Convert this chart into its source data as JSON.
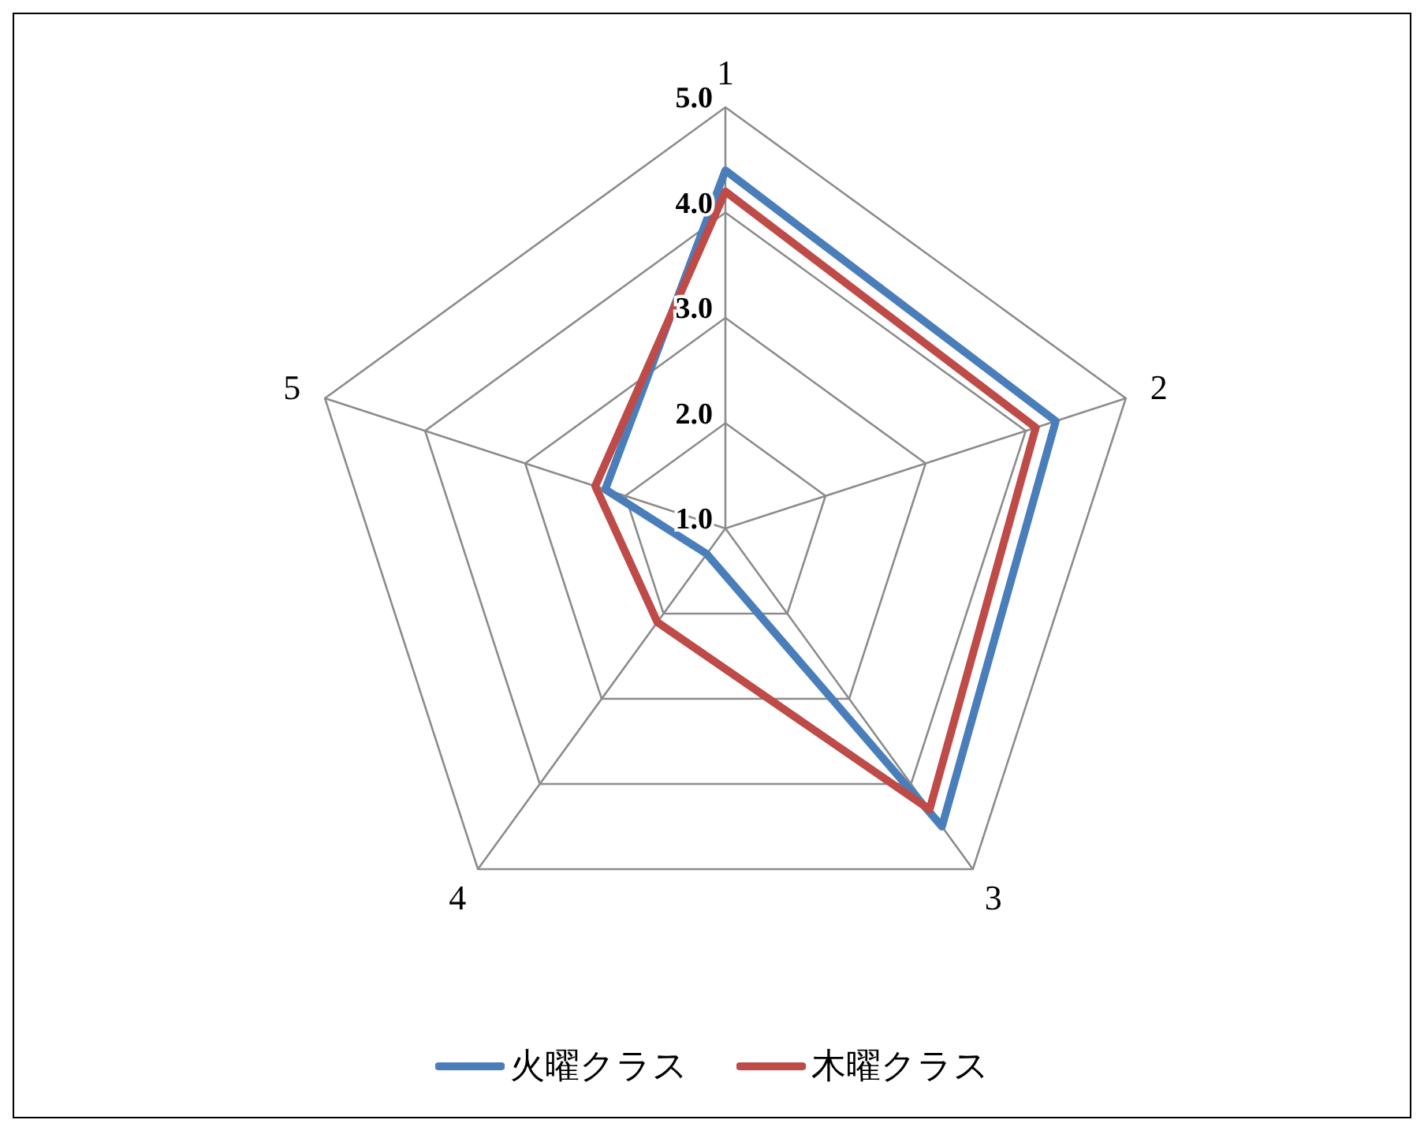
{
  "chart_data": {
    "type": "radar",
    "categories": [
      "1",
      "2",
      "3",
      "4",
      "5"
    ],
    "ylim": [
      1,
      5
    ],
    "yticks": [
      {
        "value": 1,
        "label": "1.0"
      },
      {
        "value": 2,
        "label": "2.0"
      },
      {
        "value": 3,
        "label": "3.0"
      },
      {
        "value": 4,
        "label": "4.0"
      },
      {
        "value": 5,
        "label": "5.0"
      }
    ],
    "grid": true,
    "legend": "bottom",
    "marker": "none",
    "series": [
      {
        "name": "火曜クラス",
        "color": "#4a7ebb",
        "values": [
          4.4,
          4.3,
          4.5,
          1.3,
          2.2
        ]
      },
      {
        "name": "木曜クラス",
        "color": "#be4b48",
        "values": [
          4.2,
          4.1,
          4.3,
          2.1,
          2.3
        ]
      }
    ]
  }
}
